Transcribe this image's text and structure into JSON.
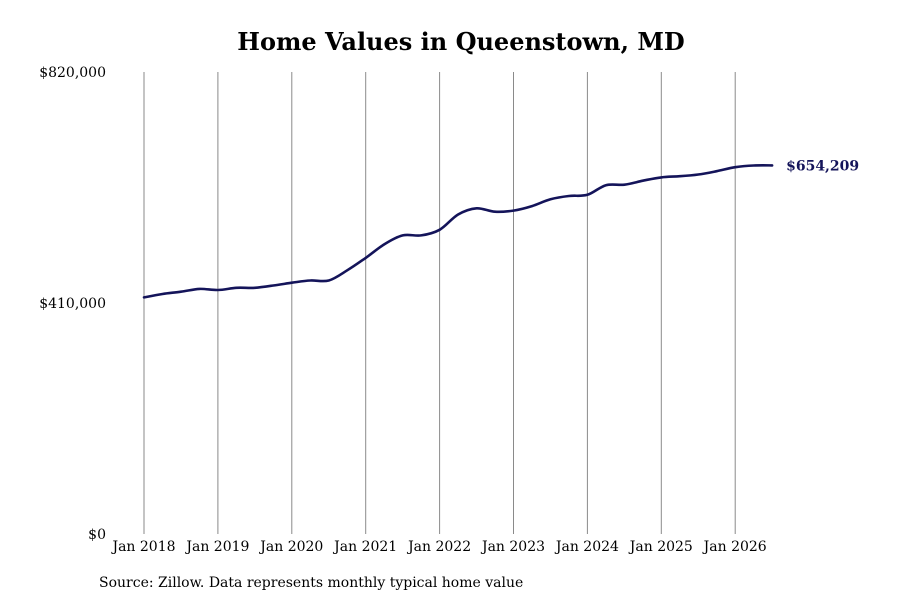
{
  "chart_data": {
    "type": "line",
    "title": "Home Values in Queenstown, MD",
    "xlabel": "",
    "ylabel": "",
    "source": "Source: Zillow. Data represents monthly typical home value",
    "grid": "vertical",
    "ylim": [
      0,
      820000
    ],
    "y_ticks": [
      {
        "value": 0,
        "label": "$0"
      },
      {
        "value": 410000,
        "label": "$410,000"
      },
      {
        "value": 820000,
        "label": "$820,000"
      }
    ],
    "x_ticks": [
      {
        "date": "2018-01",
        "label": "Jan 2018"
      },
      {
        "date": "2019-01",
        "label": "Jan 2019"
      },
      {
        "date": "2020-01",
        "label": "Jan 2020"
      },
      {
        "date": "2021-01",
        "label": "Jan 2021"
      },
      {
        "date": "2022-01",
        "label": "Jan 2022"
      },
      {
        "date": "2023-01",
        "label": "Jan 2023"
      },
      {
        "date": "2024-01",
        "label": "Jan 2024"
      },
      {
        "date": "2025-01",
        "label": "Jan 2025"
      },
      {
        "date": "2026-01",
        "label": "Jan 2026"
      }
    ],
    "end_label": "$654,209",
    "series": [
      {
        "color": "#14145a",
        "x": [
          "2018-01",
          "2018-04",
          "2018-07",
          "2018-10",
          "2019-01",
          "2019-04",
          "2019-07",
          "2019-10",
          "2020-01",
          "2020-04",
          "2020-07",
          "2020-10",
          "2021-01",
          "2021-04",
          "2021-07",
          "2021-10",
          "2022-01",
          "2022-04",
          "2022-07",
          "2022-10",
          "2023-01",
          "2023-04",
          "2023-07",
          "2023-10",
          "2024-01",
          "2024-04",
          "2024-07",
          "2024-10",
          "2025-01",
          "2025-04",
          "2025-07",
          "2025-10",
          "2026-01",
          "2026-04",
          "2026-07"
        ],
        "values": [
          420000,
          426000,
          430000,
          435000,
          433000,
          437000,
          437000,
          441000,
          446000,
          450000,
          450000,
          468000,
          490000,
          514000,
          530000,
          530000,
          540000,
          567000,
          578000,
          572000,
          574000,
          582000,
          594000,
          600000,
          602000,
          619000,
          620000,
          627000,
          633000,
          635000,
          638000,
          644000,
          651000,
          654000,
          654209
        ]
      }
    ]
  }
}
